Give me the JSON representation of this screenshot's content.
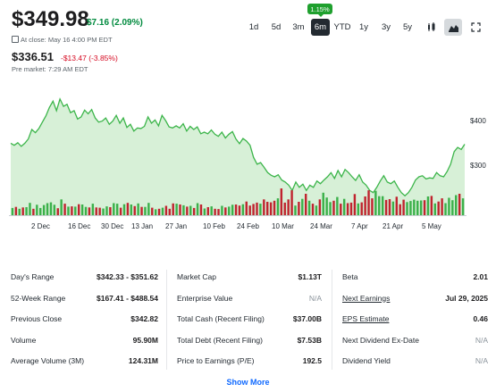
{
  "quote": {
    "price": "$349.98",
    "change": "$7.16 (2.09%)",
    "close_text": "At close: May 16 4:00 PM EDT",
    "pre_price": "$336.51",
    "pre_change": "-$13.47 (-3.85%)",
    "pre_text": "Pre market: 7:29 AM EDT"
  },
  "ranges": [
    "1d",
    "5d",
    "3m",
    "6m",
    "YTD",
    "1y",
    "3y",
    "5y"
  ],
  "active_range": "6m",
  "tooltip": "1.15%",
  "icons": [
    "candlestick-chart-icon",
    "mountain-chart-icon",
    "expand-icon"
  ],
  "colors": {
    "up": "#008a3e",
    "down": "#d60a22",
    "line": "#3cb54a",
    "fill": "#d7f0d7",
    "bar_up": "#3bb14a",
    "bar_down": "#c0242f"
  },
  "chart_data": {
    "type": "area",
    "x_tick_labels": [
      "2 Dec",
      "16 Dec",
      "30 Dec",
      "13 Jan",
      "27 Jan",
      "10 Feb",
      "24 Feb",
      "10 Mar",
      "24 Mar",
      "7 Apr",
      "21 Apr",
      "5 May"
    ],
    "y_tick_labels": [
      "$400",
      "$300"
    ],
    "y_ticks": [
      400,
      300
    ],
    "ylim": [
      215,
      480
    ],
    "grid": false,
    "series": [
      {
        "values": [
          352,
          348,
          353,
          346,
          352,
          360,
          378,
          372,
          380,
          392,
          404,
          420,
          432,
          414,
          436,
          422,
          426,
          410,
          414,
          398,
          402,
          415,
          408,
          416,
          400,
          392,
          394,
          400,
          388,
          394,
          405,
          390,
          400,
          382,
          388,
          375,
          381,
          380,
          384,
          402,
          390,
          396,
          385,
          405,
          395,
          383,
          381,
          385,
          381,
          389,
          375,
          384,
          378,
          383,
          370,
          373,
          370,
          377,
          369,
          365,
          373,
          362,
          369,
          374,
          360,
          351,
          361,
          356,
          348,
          325,
          312,
          315,
          306,
          296,
          291,
          288,
          292,
          282,
          278,
          272,
          262,
          278,
          268,
          274,
          262,
          272,
          268,
          280,
          275,
          282,
          288,
          296,
          285,
          300,
          288,
          302,
          296,
          288,
          281,
          292,
          278,
          272,
          262,
          258,
          268,
          280,
          290,
          278,
          275,
          280,
          268,
          258,
          252,
          258,
          268,
          282,
          288,
          290,
          284,
          286,
          285,
          296,
          290,
          288,
          298,
          312,
          336,
          344,
          340,
          350
        ]
      }
    ],
    "volume_series": [
      {
        "values": [
          0.27,
          0.31,
          0.24,
          0.29,
          0.3,
          0.46,
          0.24,
          0.39,
          0.27,
          0.38,
          0.45,
          0.48,
          0.39,
          0.26,
          0.59,
          0.43,
          0.32,
          0.33,
          0.32,
          0.41,
          0.4,
          0.31,
          0.29,
          0.43,
          0.29,
          0.28,
          0.25,
          0.33,
          0.3,
          0.45,
          0.43,
          0.28,
          0.41,
          0.46,
          0.4,
          0.34,
          0.44,
          0.31,
          0.31,
          0.46,
          0.28,
          0.22,
          0.24,
          0.28,
          0.35,
          0.24,
          0.44,
          0.43,
          0.4,
          0.37,
          0.32,
          0.35,
          0.27,
          0.45,
          0.4,
          0.25,
          0.3,
          0.33,
          0.24,
          0.23,
          0.35,
          0.29,
          0.32,
          0.39,
          0.4,
          0.36,
          0.41,
          0.51,
          0.36,
          0.42,
          0.47,
          0.43,
          0.59,
          0.5,
          0.48,
          0.54,
          0.63,
          1.0,
          0.47,
          0.59,
          0.93,
          0.36,
          0.5,
          0.61,
          0.8,
          0.54,
          0.43,
          0.36,
          0.59,
          0.84,
          0.66,
          0.49,
          0.54,
          0.68,
          0.43,
          0.61,
          0.45,
          0.47,
          0.79,
          0.44,
          0.48,
          0.7,
          0.93,
          0.63,
          0.91,
          0.71,
          0.71,
          0.57,
          0.6,
          0.51,
          0.69,
          0.41,
          0.58,
          0.49,
          0.53,
          0.58,
          0.54,
          0.55,
          0.56,
          0.7,
          0.72,
          0.44,
          0.51,
          0.63,
          0.45,
          0.65,
          0.56,
          0.75,
          0.8,
          0.63
        ],
        "direction": [
          "u",
          "d",
          "u",
          "d",
          "u",
          "u",
          "d",
          "u",
          "u",
          "u",
          "u",
          "u",
          "u",
          "d",
          "u",
          "d",
          "u",
          "d",
          "u",
          "d",
          "u",
          "u",
          "d",
          "u",
          "d",
          "d",
          "u",
          "u",
          "d",
          "u",
          "u",
          "d",
          "u",
          "d",
          "u",
          "d",
          "u",
          "d",
          "u",
          "u",
          "d",
          "u",
          "d",
          "u",
          "d",
          "d",
          "d",
          "u",
          "d",
          "u",
          "d",
          "u",
          "d",
          "u",
          "d",
          "u",
          "d",
          "u",
          "d",
          "d",
          "u",
          "d",
          "u",
          "u",
          "d",
          "d",
          "u",
          "d",
          "d",
          "d",
          "d",
          "u",
          "d",
          "d",
          "d",
          "d",
          "u",
          "d",
          "d",
          "d",
          "d",
          "u",
          "d",
          "u",
          "d",
          "u",
          "d",
          "u",
          "d",
          "u",
          "u",
          "u",
          "d",
          "u",
          "d",
          "u",
          "d",
          "d",
          "d",
          "u",
          "d",
          "d",
          "d",
          "d",
          "u",
          "u",
          "u",
          "d",
          "d",
          "u",
          "d",
          "d",
          "d",
          "u",
          "u",
          "u",
          "u",
          "u",
          "d",
          "u",
          "d",
          "u",
          "d",
          "d",
          "u",
          "u",
          "u",
          "u",
          "d",
          "u"
        ]
      }
    ]
  },
  "stats": {
    "col1": [
      {
        "label": "Day's Range",
        "value": "$342.33 - $351.62"
      },
      {
        "label": "52-Week Range",
        "value": "$167.41 - $488.54"
      },
      {
        "label": "Previous Close",
        "value": "$342.82"
      },
      {
        "label": "Volume",
        "value": "95.90M"
      },
      {
        "label": "Average Volume (3M)",
        "value": "124.31M"
      }
    ],
    "col2": [
      {
        "label": "Market Cap",
        "value": "$1.13T"
      },
      {
        "label": "Enterprise Value",
        "value": "N/A"
      },
      {
        "label": "Total Cash (Recent Filing)",
        "value": "$37.00B"
      },
      {
        "label": "Total Debt (Recent Filing)",
        "value": "$7.53B"
      },
      {
        "label": "Price to Earnings (P/E)",
        "value": "192.5"
      }
    ],
    "col3": [
      {
        "label": "Beta",
        "value": "2.01"
      },
      {
        "label": "Next Earnings",
        "value": "Jul 29, 2025"
      },
      {
        "label": "EPS Estimate",
        "value": "0.46"
      },
      {
        "label": "Next Dividend Ex-Date",
        "value": "N/A"
      },
      {
        "label": "Dividend Yield",
        "value": "N/A"
      }
    ]
  },
  "show_more": "Show More"
}
